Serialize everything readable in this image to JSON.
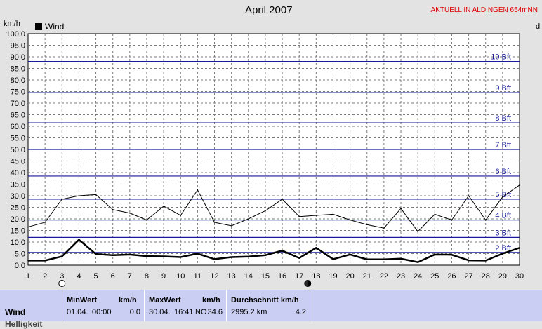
{
  "header": {
    "title": "April 2007",
    "station": "AKTUELL IN ALDINGEN 654mNN",
    "unit_left": "km/h",
    "unit_right": "d"
  },
  "colors": {
    "plot_bg": "#ffffff",
    "grid": "#7a7a7a",
    "beaufort_line": "#1a1a9a",
    "beaufort_text": "#1a1a9a",
    "series": "#000000",
    "station_text": "#e00000",
    "stats_bg": "#c9cef2"
  },
  "chart_data": {
    "type": "line",
    "title": "April 2007",
    "ylabel": "km/h",
    "xlim": [
      1,
      30
    ],
    "ylim": [
      0,
      100
    ],
    "x_ticks": [
      1,
      2,
      3,
      4,
      5,
      6,
      7,
      8,
      9,
      10,
      11,
      12,
      13,
      14,
      15,
      16,
      17,
      18,
      19,
      20,
      21,
      22,
      23,
      24,
      25,
      26,
      27,
      28,
      29,
      30
    ],
    "y_ticks": [
      "0.0",
      "5.0",
      "10.0",
      "15.0",
      "20.0",
      "25.0",
      "30.0",
      "35.0",
      "40.0",
      "45.0",
      "50.0",
      "55.0",
      "60.0",
      "65.0",
      "70.0",
      "75.0",
      "80.0",
      "85.0",
      "90.0",
      "95.0",
      "100.0"
    ],
    "legend": [
      "Wind"
    ],
    "legend_position": "top-left",
    "grid": true,
    "beaufort_lines": [
      {
        "label": "2 Bft",
        "value": 5.5
      },
      {
        "label": "3 Bft",
        "value": 12
      },
      {
        "label": "4 Bft",
        "value": 19.5
      },
      {
        "label": "5 Bft",
        "value": 28.5
      },
      {
        "label": "6 Bft",
        "value": 38.5
      },
      {
        "label": "7 Bft",
        "value": 50
      },
      {
        "label": "8 Bft",
        "value": 61.5
      },
      {
        "label": "9 Bft",
        "value": 74.5
      },
      {
        "label": "10 Bft",
        "value": 88
      }
    ],
    "series": [
      {
        "name": "Wind",
        "x": [
          1,
          2,
          3,
          4,
          5,
          6,
          7,
          8,
          9,
          10,
          11,
          12,
          13,
          14,
          15,
          16,
          17,
          18,
          19,
          20,
          21,
          22,
          23,
          24,
          25,
          26,
          27,
          28,
          29,
          30
        ],
        "values": [
          2,
          2,
          3.8,
          11,
          4.8,
          4.3,
          4.6,
          3.9,
          3.8,
          3.5,
          5,
          2.6,
          3.5,
          3.7,
          4.3,
          6.3,
          3.1,
          7.5,
          2.6,
          4.6,
          2.5,
          2.5,
          2.8,
          1.3,
          4.6,
          4.5,
          2.1,
          2,
          5,
          7.5
        ],
        "style": "thick"
      },
      {
        "x": [
          1,
          2,
          3,
          4,
          5,
          6,
          7,
          8,
          9,
          10,
          11,
          12,
          13,
          14,
          15,
          16,
          17,
          18,
          19,
          20,
          21,
          22,
          23,
          24,
          25,
          26,
          27,
          28,
          29,
          30
        ],
        "values": [
          16.5,
          18.5,
          28.5,
          30,
          30.5,
          24,
          22.5,
          19.5,
          25.5,
          21.5,
          32.5,
          18.5,
          17,
          20,
          23.5,
          28.5,
          21,
          21.5,
          22,
          19.5,
          17.5,
          16,
          24.5,
          14.5,
          22,
          19.5,
          30,
          19.5,
          29.5,
          34.6
        ],
        "style": "thin"
      }
    ],
    "day_markers": [
      {
        "day": 3,
        "symbol": "empty-circle"
      },
      {
        "day": 17.5,
        "symbol": "half-circle"
      }
    ]
  },
  "stats": {
    "row_label": "Wind",
    "row_label_2": "Helligkeit",
    "min": {
      "header": "MinWert",
      "unit": "km/h",
      "date": "01.04.",
      "time": "00:00",
      "value": "0.0"
    },
    "max": {
      "header": "MaxWert",
      "unit": "km/h",
      "date": "30.04.",
      "time": "16:41",
      "dir": "NO",
      "value": "34.6"
    },
    "avg": {
      "header": "Durchschnitt km/h",
      "total": "2995.2 km",
      "value": "4.2"
    }
  }
}
